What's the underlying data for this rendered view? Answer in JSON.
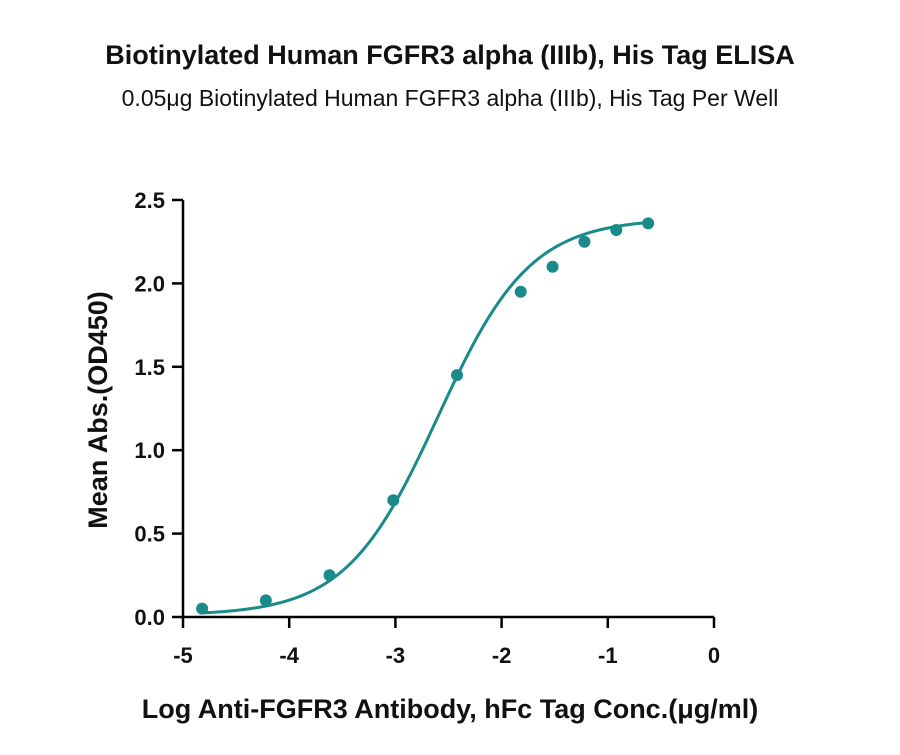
{
  "chart_data": {
    "type": "scatter",
    "title": "Biotinylated Human FGFR3 alpha (IIIb), His Tag ELISA",
    "subtitle": "0.05μg Biotinylated Human FGFR3 alpha (IIIb), His Tag Per Well",
    "xlabel": "Log Anti-FGFR3 Antibody, hFc  Tag Conc.(μg/ml)",
    "ylabel": "Mean Abs.(OD450)",
    "xlim": [
      -5,
      0
    ],
    "ylim": [
      0,
      2.5
    ],
    "xticks": [
      "-5",
      "-4",
      "-3",
      "-2",
      "-1",
      "0"
    ],
    "yticks": [
      "0.0",
      "0.5",
      "1.0",
      "1.5",
      "2.0",
      "2.5"
    ],
    "xtick_values": [
      -5,
      -4,
      -3,
      -2,
      -1,
      0
    ],
    "ytick_values": [
      0,
      0.5,
      1.0,
      1.5,
      2.0,
      2.5
    ],
    "grid": false,
    "color": "#1a8a8a",
    "series": [
      {
        "points": [
          {
            "x": -4.82,
            "y": 0.05
          },
          {
            "x": -4.22,
            "y": 0.1
          },
          {
            "x": -3.62,
            "y": 0.25
          },
          {
            "x": -3.02,
            "y": 0.7
          },
          {
            "x": -2.42,
            "y": 1.45
          },
          {
            "x": -1.82,
            "y": 1.95
          },
          {
            "x": -1.52,
            "y": 2.1
          },
          {
            "x": -1.22,
            "y": 2.25
          },
          {
            "x": -0.92,
            "y": 2.32
          },
          {
            "x": -0.62,
            "y": 2.36
          }
        ],
        "fit": {
          "model": "4PL",
          "bottom": 0.01,
          "top": 2.39,
          "log_ec50": -2.6,
          "hill": 1.0
        }
      }
    ]
  }
}
